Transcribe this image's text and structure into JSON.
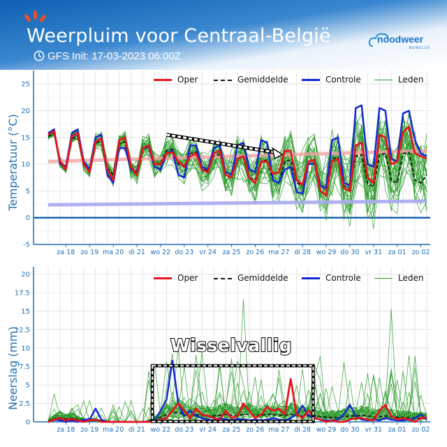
{
  "header": {
    "title": "Weerpluim voor  Centraal-België",
    "init": "GFS Init: 17-03-2023 06:00Z",
    "logo": "noodweer",
    "logo_sub": "BENELUX",
    "colors": {
      "banner": "#1f6fbf",
      "accent": "#e8502a"
    }
  },
  "legend": {
    "oper": "Oper",
    "mean": "Gemiddelde",
    "control": "Controle",
    "members": "Leden"
  },
  "colors": {
    "oper": "#e8141e",
    "mean": "#111111",
    "control": "#1428d2",
    "members": "#2a9a2a",
    "climate_max": "#f2a3a3",
    "climate_min": "#a9a9f0",
    "axis": "#1f6fb6"
  },
  "x_ticks": [
    "za 18",
    "zo 19",
    "ma 20",
    "di 21",
    "wo 22",
    "do 23",
    "vr 24",
    "za 25",
    "zo 26",
    "ma 27",
    "di 28",
    "wo 29",
    "do 30",
    "vr 31",
    "za 01",
    "zo 02"
  ],
  "chart_data": [
    {
      "type": "line",
      "title": "",
      "ylabel": "Temperatuur (°C)",
      "ylim": [
        -5,
        27.5
      ],
      "yticks": [
        -5,
        0,
        5,
        10,
        15,
        20,
        25
      ],
      "x_unit": "days from 17-03-2023 06:00Z",
      "grid": true,
      "legend_position": "top-right",
      "annotation": "trend arrow (dashed)",
      "series": [
        {
          "name": "Oper",
          "x": [
            0,
            0.25,
            0.5,
            0.75,
            1,
            1.25,
            1.5,
            1.75,
            2,
            2.25,
            2.5,
            2.75,
            3,
            3.25,
            3.5,
            3.75,
            4,
            4.25,
            4.5,
            4.75,
            5,
            5.25,
            5.5,
            5.75,
            6,
            6.25,
            6.5,
            6.75,
            7,
            7.25,
            7.5,
            7.75,
            8,
            8.25,
            8.5,
            8.75,
            9,
            9.25,
            9.5,
            9.75,
            10,
            10.25,
            10.5,
            10.75,
            11,
            11.25,
            11.5,
            11.75,
            12,
            12.25,
            12.5,
            12.75,
            13,
            13.25,
            13.5,
            13.75,
            14,
            14.25,
            14.5,
            14.75,
            15,
            15.25,
            15.5,
            15.75,
            16
          ],
          "values": [
            15.5,
            16.2,
            10.5,
            9,
            15.2,
            15.8,
            10,
            8.5,
            14.2,
            14.8,
            9,
            7,
            14.5,
            15,
            9.5,
            8,
            13,
            13.5,
            10,
            10,
            12,
            12.2,
            10.5,
            9.5,
            11.5,
            12,
            9,
            8.5,
            12,
            12.5,
            8,
            7.5,
            11,
            11.5,
            7.5,
            6.5,
            10.5,
            10.5,
            8.2,
            8.5,
            12.5,
            12.5,
            7,
            6.2,
            10.5,
            10.8,
            5,
            4.2,
            10.5,
            11,
            5.5,
            5,
            13.5,
            14,
            7.5,
            6.5,
            15.5,
            15,
            10,
            10.5,
            16,
            17,
            12,
            11.5,
            11
          ]
        },
        {
          "name": "Gemiddelde",
          "x": [
            0,
            0.25,
            0.5,
            0.75,
            1,
            1.25,
            1.5,
            1.75,
            2,
            2.25,
            2.5,
            2.75,
            3,
            3.25,
            3.5,
            3.75,
            4,
            4.25,
            4.5,
            4.75,
            5,
            5.25,
            5.5,
            5.75,
            6,
            6.25,
            6.5,
            6.75,
            7,
            7.25,
            7.5,
            7.75,
            8,
            8.25,
            8.5,
            8.75,
            9,
            9.25,
            9.5,
            9.75,
            10,
            10.25,
            10.5,
            10.75,
            11,
            11.25,
            11.5,
            11.75,
            12,
            12.25,
            12.5,
            12.75,
            13,
            13.25,
            13.5,
            13.75,
            14,
            14.25,
            14.5,
            14.75,
            15,
            15.25,
            15.5,
            15.75,
            16
          ],
          "values": [
            15.2,
            15.9,
            10.2,
            9,
            14.8,
            15.2,
            9.8,
            8.8,
            14,
            14.3,
            9.2,
            8,
            13.8,
            14.2,
            9.5,
            8.8,
            13,
            13.3,
            10,
            10.2,
            12.5,
            12.8,
            10,
            9.5,
            12,
            12.3,
            9,
            8.8,
            11.5,
            11.8,
            8.5,
            8,
            11,
            11.2,
            7.5,
            7,
            10.5,
            10.8,
            7,
            6.5,
            10.5,
            10.8,
            6.5,
            6,
            10.5,
            10.8,
            6,
            5.5,
            11,
            11.3,
            6,
            5.5,
            11.5,
            11.8,
            6.5,
            5.8,
            11.8,
            12,
            7,
            6.5,
            12,
            12.2,
            7,
            6.5,
            8
          ]
        },
        {
          "name": "Controle",
          "x": [
            0,
            0.25,
            0.5,
            0.75,
            1,
            1.25,
            1.5,
            1.75,
            2,
            2.25,
            2.5,
            2.75,
            3,
            3.25,
            3.5,
            3.75,
            4,
            4.25,
            4.5,
            4.75,
            5,
            5.25,
            5.5,
            5.75,
            6,
            6.25,
            6.5,
            6.75,
            7,
            7.25,
            7.5,
            7.75,
            8,
            8.25,
            8.5,
            8.75,
            9,
            9.25,
            9.5,
            9.75,
            10,
            10.25,
            10.5,
            10.75,
            11,
            11.25,
            11.5,
            11.75,
            12,
            12.25,
            12.5,
            12.75,
            13,
            13.25,
            13.5,
            13.75,
            14,
            14.25,
            14.5,
            14.75,
            15,
            15.25,
            15.5,
            15.75,
            16
          ],
          "values": [
            15.8,
            16.5,
            10,
            9.5,
            15.8,
            16.5,
            10.5,
            9,
            15,
            15.5,
            8,
            6.5,
            13,
            13,
            9,
            8.5,
            13,
            13.2,
            9.5,
            9,
            12,
            12.5,
            8,
            7.5,
            13.5,
            13.5,
            9.5,
            9,
            13,
            13.5,
            8.5,
            8,
            13.5,
            14,
            9,
            8.5,
            14.5,
            14,
            7,
            6.5,
            9,
            9.5,
            4.8,
            4.5,
            10,
            10.2,
            6,
            5.5,
            14.5,
            15,
            6.5,
            6,
            20.5,
            21,
            10,
            9.5,
            20.5,
            20,
            11,
            10.5,
            19.5,
            20,
            14.5,
            12,
            11.5
          ]
        },
        {
          "name": "Leden",
          "note": "30 ensemble members",
          "envelope_min_max_approx": [
            [
              1,
              17
            ],
            [
              3,
              21
            ],
            [
              2,
              22
            ]
          ]
        },
        {
          "name": "climate max (pink band)",
          "x": [
            0,
            16
          ],
          "values": [
            10.5,
            12.5
          ]
        },
        {
          "name": "climate min (lavender band)",
          "x": [
            0,
            16
          ],
          "values": [
            2.4,
            3.1
          ]
        }
      ]
    },
    {
      "type": "line",
      "title": "",
      "ylabel": "Neerslag (mm)",
      "ylim": [
        0,
        21
      ],
      "yticks": [
        0,
        2.5,
        5,
        7.5,
        10,
        12.5,
        15,
        17.5,
        20
      ],
      "x_unit": "days from 17-03-2023 06:00Z",
      "grid": true,
      "legend_position": "top-right",
      "annotation": "Wisselvallig",
      "series": [
        {
          "name": "Oper",
          "x": [
            0,
            0.25,
            0.5,
            0.75,
            1,
            1.25,
            1.5,
            1.75,
            2,
            2.25,
            2.5,
            2.75,
            3,
            3.25,
            3.5,
            3.75,
            4,
            4.25,
            4.5,
            4.75,
            5,
            5.25,
            5.5,
            5.75,
            6,
            6.25,
            6.5,
            6.75,
            7,
            7.25,
            7.5,
            7.75,
            8,
            8.25,
            8.5,
            8.75,
            9,
            9.25,
            9.5,
            9.75,
            10,
            10.25,
            10.5,
            10.75,
            11,
            11.25,
            11.5,
            11.75,
            12,
            12.25,
            12.5,
            12.75,
            13,
            13.25,
            13.5,
            13.75,
            14,
            14.25,
            14.5,
            14.75,
            15,
            15.25,
            15.5,
            15.75,
            16
          ],
          "values": [
            0,
            0.3,
            0.5,
            0.2,
            0.4,
            0.2,
            0,
            0.2,
            0.3,
            0,
            0,
            0,
            0,
            0,
            0,
            0,
            0,
            0,
            0,
            0.3,
            0.5,
            1.5,
            2.5,
            1.5,
            0.5,
            1.8,
            1,
            0.8,
            0.5,
            0.3,
            1.5,
            0.5,
            0.8,
            2.5,
            1.5,
            0.5,
            1,
            2,
            1.5,
            1.8,
            1,
            5.8,
            1,
            0.5,
            1.5,
            0.5,
            0.3,
            0,
            0.2,
            0,
            0,
            0.3,
            0.5,
            0.5,
            0.3,
            0.2,
            1.5,
            2.3,
            0.8,
            0.3,
            0.5,
            0.3,
            0,
            0.5,
            0.6
          ]
        },
        {
          "name": "Gemiddelde",
          "x": [
            0,
            0.25,
            0.5,
            0.75,
            1,
            1.25,
            1.5,
            1.75,
            2,
            2.25,
            2.5,
            2.75,
            3,
            3.25,
            3.5,
            3.75,
            4,
            4.25,
            4.5,
            4.75,
            5,
            5.25,
            5.5,
            5.75,
            6,
            6.25,
            6.5,
            6.75,
            7,
            7.25,
            7.5,
            7.75,
            8,
            8.25,
            8.5,
            8.75,
            9,
            9.25,
            9.5,
            9.75,
            10,
            10.25,
            10.5,
            10.75,
            11,
            11.25,
            11.5,
            11.75,
            12,
            12.25,
            12.5,
            12.75,
            13,
            13.25,
            13.5,
            13.75,
            14,
            14.25,
            14.5,
            14.75,
            15,
            15.25,
            15.5,
            15.75,
            16
          ],
          "values": [
            0.1,
            0.4,
            0.6,
            0.4,
            0.5,
            0.3,
            0.2,
            0.2,
            0.2,
            0.1,
            0,
            0,
            0,
            0,
            0,
            0,
            0,
            0.1,
            0.3,
            0.6,
            1,
            1.2,
            1.3,
            1,
            0.8,
            1,
            0.9,
            0.8,
            0.8,
            0.9,
            1,
            0.9,
            0.8,
            1,
            1,
            0.9,
            0.9,
            1,
            1,
            0.9,
            0.9,
            1,
            0.9,
            0.8,
            0.9,
            0.8,
            0.7,
            0.6,
            0.6,
            0.6,
            0.7,
            0.8,
            0.8,
            0.9,
            0.8,
            0.7,
            0.7,
            0.8,
            0.7,
            0.6,
            0.6,
            0.6,
            0.5,
            0.5,
            0.5
          ]
        },
        {
          "name": "Controle",
          "x": [
            0,
            0.25,
            0.5,
            0.75,
            1,
            1.25,
            1.5,
            1.75,
            2,
            2.25,
            2.5,
            2.75,
            3,
            3.25,
            3.5,
            3.75,
            4,
            4.25,
            4.5,
            4.75,
            5,
            5.25,
            5.5,
            5.75,
            6,
            6.25,
            6.5,
            6.75,
            7,
            7.25,
            7.5,
            7.75,
            8,
            8.25,
            8.5,
            8.75,
            9,
            9.25,
            9.5,
            9.75,
            10,
            10.25,
            10.5,
            10.75,
            11,
            11.25,
            11.5,
            11.75,
            12,
            12.25,
            12.5,
            12.75,
            13,
            13.25,
            13.5,
            13.75,
            14,
            14.25,
            14.5,
            14.75,
            15,
            15.25,
            15.5,
            15.75,
            16
          ],
          "values": [
            0,
            0.3,
            0.2,
            0,
            0.2,
            0,
            0.3,
            0.3,
            1.8,
            0.3,
            0,
            0,
            0,
            0,
            0,
            0,
            0,
            0,
            0.2,
            1.5,
            3,
            8.3,
            2.5,
            0.8,
            1.5,
            0.8,
            0.5,
            0.3,
            0.2,
            0.5,
            0.3,
            0.2,
            0.4,
            0.3,
            0.2,
            0.3,
            0.2,
            0.3,
            0.5,
            0.3,
            0.2,
            0.5,
            1,
            2.2,
            0.8,
            0.5,
            0.3,
            0.2,
            0.2,
            0.3,
            1,
            2.3,
            0.8,
            0.3,
            0.2,
            0.3,
            0.2,
            0.5,
            0.3,
            0.2,
            0.2,
            0.3,
            0.5,
            1,
            0.3
          ]
        },
        {
          "name": "Leden",
          "note": "30 ensemble members",
          "peak_max_approx": 16.6
        }
      ]
    }
  ]
}
